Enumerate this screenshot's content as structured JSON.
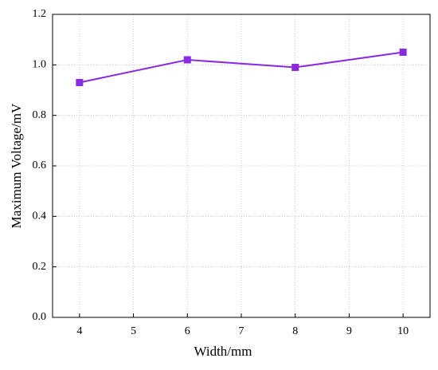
{
  "chart_data": {
    "type": "line",
    "x_label": "Width/mm",
    "y_label": "Maximum Voltage/mV",
    "x": [
      4,
      6,
      8,
      10
    ],
    "series": [
      {
        "color": "#8a2be2",
        "values": [
          0.93,
          1.02,
          0.99,
          1.05
        ]
      }
    ],
    "xlim": [
      3.5,
      10.5
    ],
    "xticks": [
      4,
      5,
      6,
      7,
      8,
      9,
      10
    ],
    "ylim": [
      0,
      1.2
    ],
    "yticks": [
      {
        "value": 0,
        "label": "0.0"
      },
      0.2,
      0.4,
      0.6,
      0.8,
      {
        "value": 1,
        "label": "1.0"
      },
      1.2
    ],
    "grid": true
  }
}
